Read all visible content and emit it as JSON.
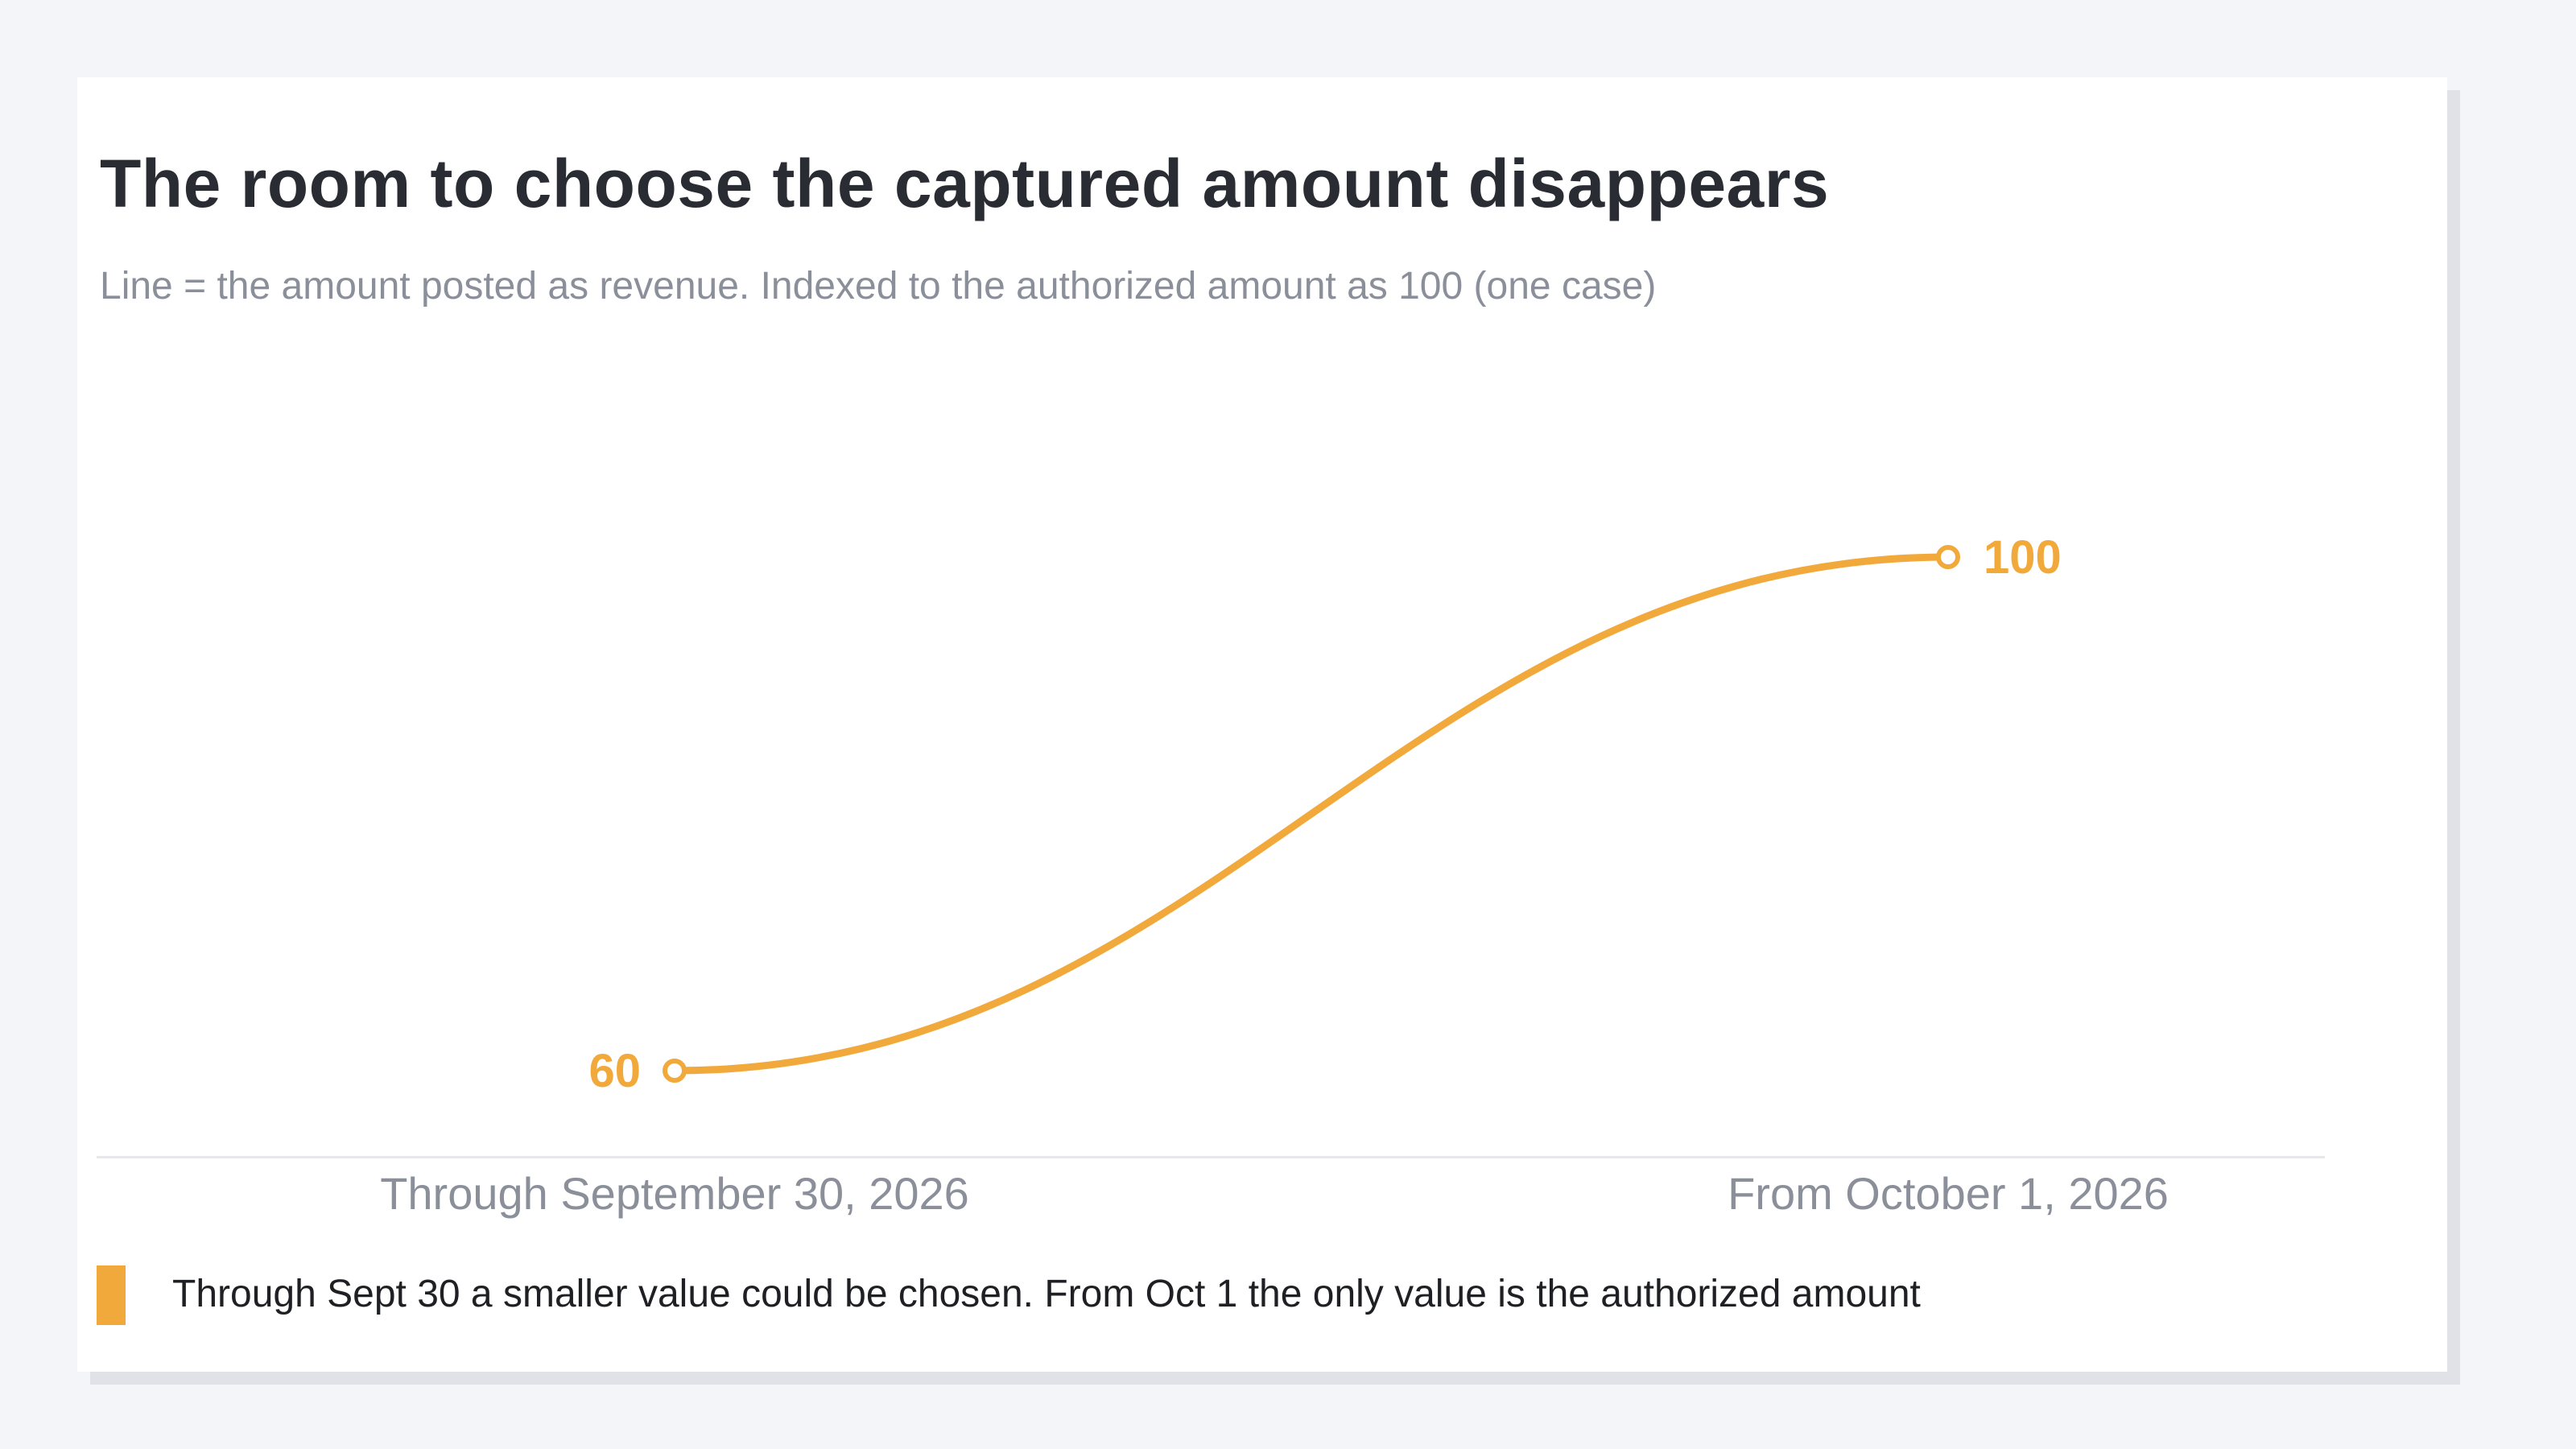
{
  "chart_data": {
    "type": "line",
    "title": "The room to choose the captured amount disappears",
    "subtitle": "Line = the amount posted as revenue. Indexed to the authorized amount as 100 (one case)",
    "categories": [
      "Through September 30, 2026",
      "From October 1, 2026"
    ],
    "series": [
      {
        "values": [
          60,
          100
        ],
        "data_labels": [
          "60",
          "100"
        ]
      }
    ],
    "ylim": [
      60,
      100
    ],
    "grid": false,
    "legend_note": "Through Sept 30 a smaller value could be chosen. From Oct 1 the only value is the authorized amount"
  },
  "colors": {
    "series": "#f2a93b",
    "title": "#2a2c33",
    "muted": "#8a8f99"
  }
}
